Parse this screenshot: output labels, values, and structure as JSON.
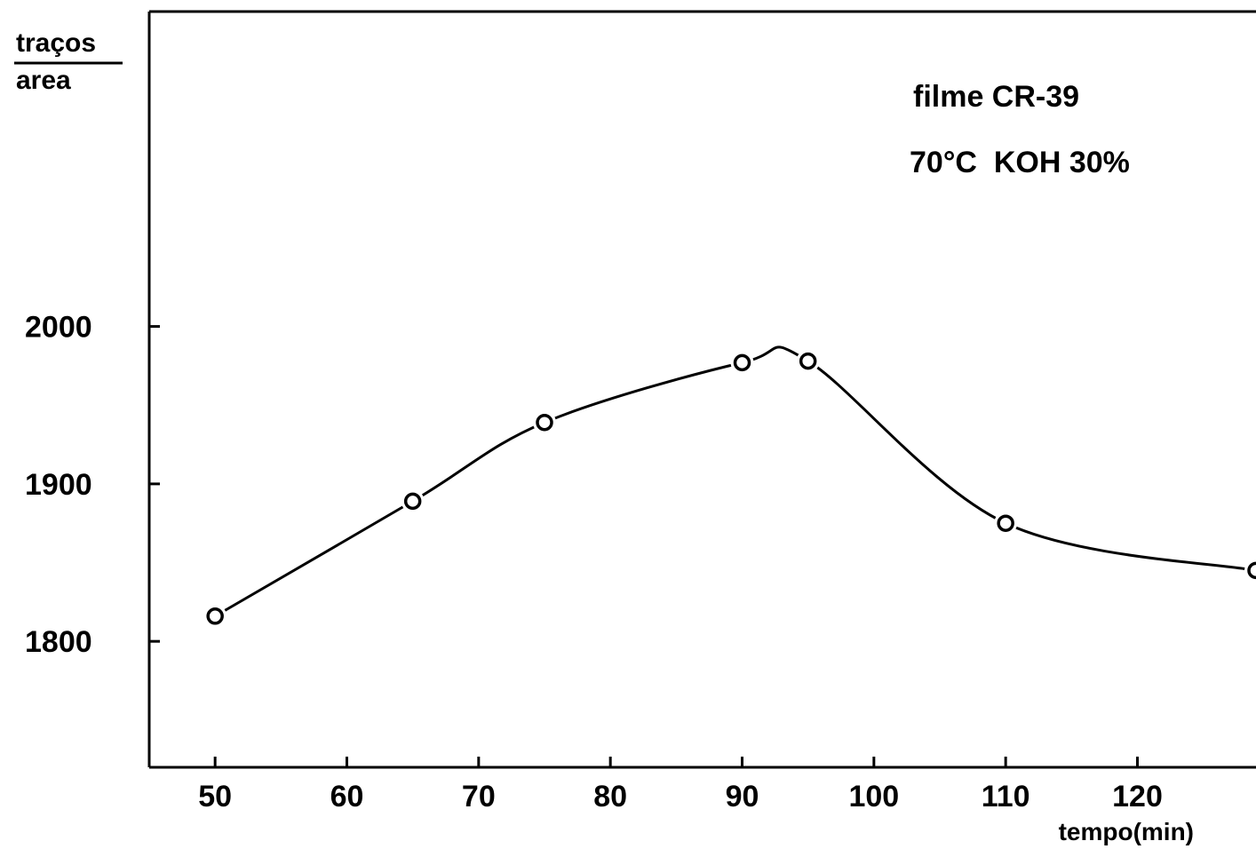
{
  "chart_data": {
    "type": "line",
    "xlabel": "tempo(min)",
    "ylabel_top": "traços",
    "ylabel_bottom": "area",
    "annotations": [
      "filme CR-39",
      "70°C  KOH 30%"
    ],
    "xlim": [
      45,
      129
    ],
    "ylim": [
      1720,
      2200
    ],
    "x_ticks": [
      50,
      60,
      70,
      80,
      90,
      100,
      110,
      120
    ],
    "y_ticks": [
      1800,
      1900,
      2000
    ],
    "grid": false,
    "series": [
      {
        "x": [
          50,
          65,
          75,
          90,
          95,
          110,
          129
        ],
        "y": [
          1816,
          1889,
          1939,
          1977,
          1978,
          1875,
          1845
        ],
        "marker": "open-circle",
        "color": "#000000"
      }
    ]
  }
}
